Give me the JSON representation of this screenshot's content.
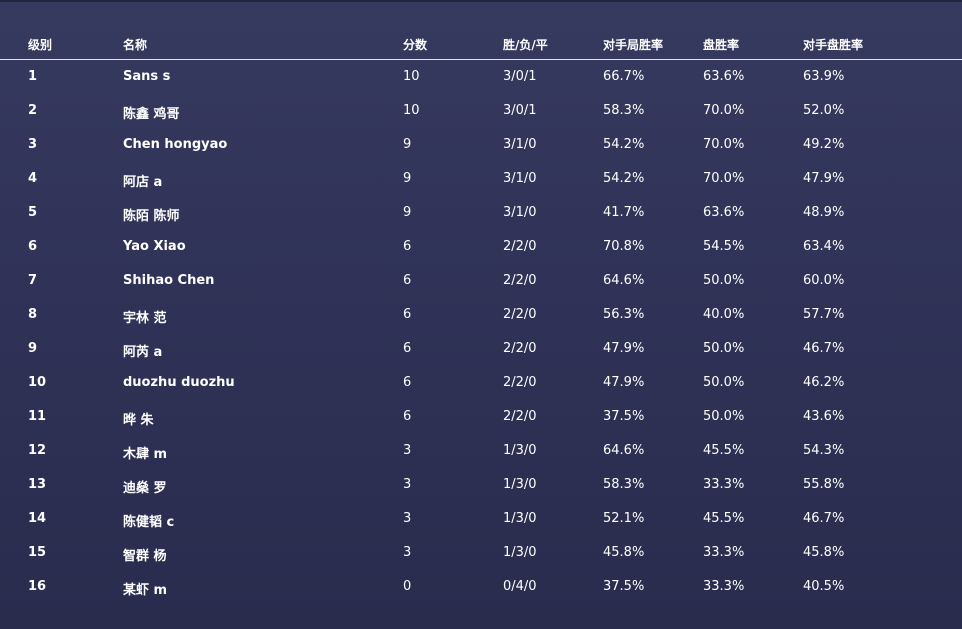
{
  "standings": {
    "columns": {
      "rank": "级别",
      "name": "名称",
      "points": "分数",
      "record": "胜/负/平",
      "omw": "对手局胜率",
      "gw": "盘胜率",
      "ogw": "对手盘胜率"
    },
    "rows": [
      {
        "rank": "1",
        "name": "Sans s",
        "points": "10",
        "record": "3/0/1",
        "omw": "66.7%",
        "gw": "63.6%",
        "ogw": "63.9%"
      },
      {
        "rank": "2",
        "name": "陈鑫 鸡哥",
        "points": "10",
        "record": "3/0/1",
        "omw": "58.3%",
        "gw": "70.0%",
        "ogw": "52.0%"
      },
      {
        "rank": "3",
        "name": "Chen hongyao",
        "points": "9",
        "record": "3/1/0",
        "omw": "54.2%",
        "gw": "70.0%",
        "ogw": "49.2%"
      },
      {
        "rank": "4",
        "name": "阿店 a",
        "points": "9",
        "record": "3/1/0",
        "omw": "54.2%",
        "gw": "70.0%",
        "ogw": "47.9%"
      },
      {
        "rank": "5",
        "name": "陈陌 陈师",
        "points": "9",
        "record": "3/1/0",
        "omw": "41.7%",
        "gw": "63.6%",
        "ogw": "48.9%"
      },
      {
        "rank": "6",
        "name": "Yao Xiao",
        "points": "6",
        "record": "2/2/0",
        "omw": "70.8%",
        "gw": "54.5%",
        "ogw": "63.4%"
      },
      {
        "rank": "7",
        "name": "Shihao Chen",
        "points": "6",
        "record": "2/2/0",
        "omw": "64.6%",
        "gw": "50.0%",
        "ogw": "60.0%"
      },
      {
        "rank": "8",
        "name": "宇林 范",
        "points": "6",
        "record": "2/2/0",
        "omw": "56.3%",
        "gw": "40.0%",
        "ogw": "57.7%"
      },
      {
        "rank": "9",
        "name": "阿芮 a",
        "points": "6",
        "record": "2/2/0",
        "omw": "47.9%",
        "gw": "50.0%",
        "ogw": "46.7%"
      },
      {
        "rank": "10",
        "name": "duozhu duozhu",
        "points": "6",
        "record": "2/2/0",
        "omw": "47.9%",
        "gw": "50.0%",
        "ogw": "46.2%"
      },
      {
        "rank": "11",
        "name": "晔 朱",
        "points": "6",
        "record": "2/2/0",
        "omw": "37.5%",
        "gw": "50.0%",
        "ogw": "43.6%"
      },
      {
        "rank": "12",
        "name": "木肆 m",
        "points": "3",
        "record": "1/3/0",
        "omw": "64.6%",
        "gw": "45.5%",
        "ogw": "54.3%"
      },
      {
        "rank": "13",
        "name": "迪燊 罗",
        "points": "3",
        "record": "1/3/0",
        "omw": "58.3%",
        "gw": "33.3%",
        "ogw": "55.8%"
      },
      {
        "rank": "14",
        "name": "陈健韬 c",
        "points": "3",
        "record": "1/3/0",
        "omw": "52.1%",
        "gw": "45.5%",
        "ogw": "46.7%"
      },
      {
        "rank": "15",
        "name": "智群 杨",
        "points": "3",
        "record": "1/3/0",
        "omw": "45.8%",
        "gw": "33.3%",
        "ogw": "45.8%"
      },
      {
        "rank": "16",
        "name": "某虾 m",
        "points": "0",
        "record": "0/4/0",
        "omw": "37.5%",
        "gw": "33.3%",
        "ogw": "40.5%"
      }
    ]
  }
}
